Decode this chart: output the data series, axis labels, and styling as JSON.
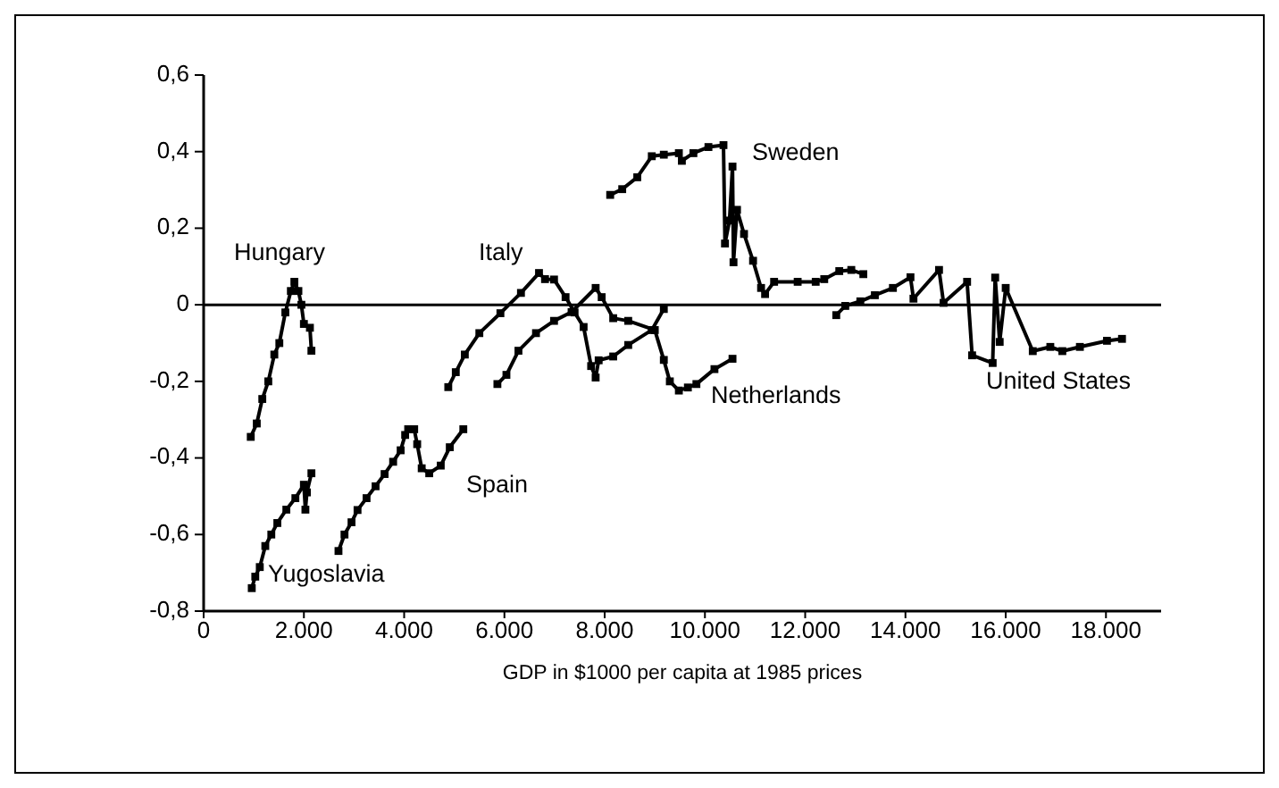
{
  "chart_data": {
    "type": "line",
    "xlabel": "GDP in $1000 per capita at 1985 prices",
    "xlim": [
      0,
      19100
    ],
    "ylim": [
      -0.8,
      0.6
    ],
    "xticks": [
      0,
      {
        "value": 2000,
        "label": "2.000"
      },
      {
        "value": 4000,
        "label": "4.000"
      },
      {
        "value": 6000,
        "label": "6.000"
      },
      {
        "value": 8000,
        "label": "8.000"
      },
      {
        "value": 10000,
        "label": "10.000"
      },
      {
        "value": 12000,
        "label": "12.000"
      },
      {
        "value": 14000,
        "label": "14.000"
      },
      {
        "value": 16000,
        "label": "16.000"
      },
      {
        "value": 18000,
        "label": "18.000"
      }
    ],
    "yticks": [
      {
        "value": -0.8,
        "label": "-0,8"
      },
      {
        "value": -0.6,
        "label": "-0,6"
      },
      {
        "value": -0.4,
        "label": "-0,4"
      },
      {
        "value": -0.2,
        "label": "-0,2"
      },
      0,
      {
        "value": 0.2,
        "label": "0,2"
      },
      {
        "value": 0.4,
        "label": "0,4"
      },
      {
        "value": 0.6,
        "label": "0,6"
      }
    ],
    "grid": false,
    "legend": false,
    "marker": "square",
    "line_style": "solid",
    "ref_lines": [
      {
        "axis": "y",
        "value": 0,
        "color": "#000000"
      }
    ],
    "series": [
      {
        "name": "Hungary",
        "color": "#000000",
        "x": [
          940,
          1060,
          1170,
          1290,
          1410,
          1510,
          1630,
          1740,
          1810,
          1890,
          1950,
          2000,
          2120,
          2150
        ],
        "values": [
          -0.345,
          -0.31,
          -0.246,
          -0.2,
          -0.13,
          -0.1,
          -0.02,
          0.036,
          0.06,
          0.036,
          0,
          -0.05,
          -0.06,
          -0.12
        ]
      },
      {
        "name": "Yugoslavia",
        "color": "#000000",
        "x": [
          960,
          1030,
          1120,
          1230,
          1350,
          1470,
          1650,
          1830,
          2000,
          2030,
          2060,
          2150
        ],
        "values": [
          -0.74,
          -0.71,
          -0.685,
          -0.63,
          -0.6,
          -0.57,
          -0.535,
          -0.505,
          -0.47,
          -0.535,
          -0.49,
          -0.44
        ]
      },
      {
        "name": "Spain",
        "color": "#000000",
        "x": [
          2690,
          2810,
          2950,
          3070,
          3250,
          3430,
          3610,
          3780,
          3930,
          4020,
          4080,
          4200,
          4260,
          4350,
          4500,
          4730,
          4910,
          5180
        ],
        "values": [
          -0.643,
          -0.6,
          -0.568,
          -0.536,
          -0.505,
          -0.474,
          -0.442,
          -0.41,
          -0.38,
          -0.34,
          -0.325,
          -0.325,
          -0.364,
          -0.427,
          -0.44,
          -0.42,
          -0.372,
          -0.325
        ]
      },
      {
        "name": "Italy",
        "color": "#000000",
        "x": [
          4880,
          5030,
          5210,
          5500,
          5920,
          6330,
          6690,
          6810,
          6990,
          7220,
          7400,
          7580,
          7730,
          7820,
          7880,
          8170,
          8470,
          8940,
          9180
        ],
        "values": [
          -0.215,
          -0.176,
          -0.13,
          -0.074,
          -0.022,
          0.031,
          0.083,
          0.067,
          0.066,
          0.02,
          -0.02,
          -0.058,
          -0.16,
          -0.19,
          -0.145,
          -0.135,
          -0.105,
          -0.066,
          -0.011
        ]
      },
      {
        "name": "Netherlands",
        "color": "#000000",
        "x": [
          5860,
          6040,
          6280,
          6630,
          6990,
          7340,
          7820,
          7940,
          8170,
          8470,
          9000,
          9180,
          9300,
          9480,
          9660,
          9830,
          10190,
          10550
        ],
        "values": [
          -0.207,
          -0.183,
          -0.12,
          -0.074,
          -0.042,
          -0.019,
          0.044,
          0.02,
          -0.035,
          -0.042,
          -0.066,
          -0.144,
          -0.2,
          -0.224,
          -0.216,
          -0.207,
          -0.168,
          -0.141
        ]
      },
      {
        "name": "Sweden",
        "color": "#000000",
        "x": [
          8110,
          8350,
          8650,
          8940,
          9180,
          9480,
          9540,
          9770,
          10070,
          10370,
          10400,
          10490,
          10550,
          10570,
          10640,
          10780,
          10960,
          11120,
          11200,
          11380,
          11850,
          12210,
          12380,
          12680,
          12920,
          13160
        ],
        "values": [
          0.287,
          0.302,
          0.333,
          0.388,
          0.392,
          0.396,
          0.376,
          0.396,
          0.412,
          0.417,
          0.16,
          0.22,
          0.361,
          0.111,
          0.248,
          0.185,
          0.115,
          0.044,
          0.028,
          0.06,
          0.06,
          0.06,
          0.067,
          0.088,
          0.091,
          0.08
        ]
      },
      {
        "name": "United States",
        "color": "#000000",
        "x": [
          12620,
          12800,
          13100,
          13390,
          13750,
          14100,
          14160,
          14670,
          14760,
          15230,
          15330,
          15740,
          15790,
          15880,
          16000,
          16540,
          16890,
          17130,
          17480,
          18020,
          18320
        ],
        "values": [
          -0.027,
          -0.003,
          0.009,
          0.025,
          0.044,
          0.072,
          0.016,
          0.091,
          0.005,
          0.06,
          -0.132,
          -0.152,
          0.071,
          -0.097,
          0.044,
          -0.121,
          -0.11,
          -0.121,
          -0.11,
          -0.094,
          -0.089
        ]
      }
    ]
  }
}
